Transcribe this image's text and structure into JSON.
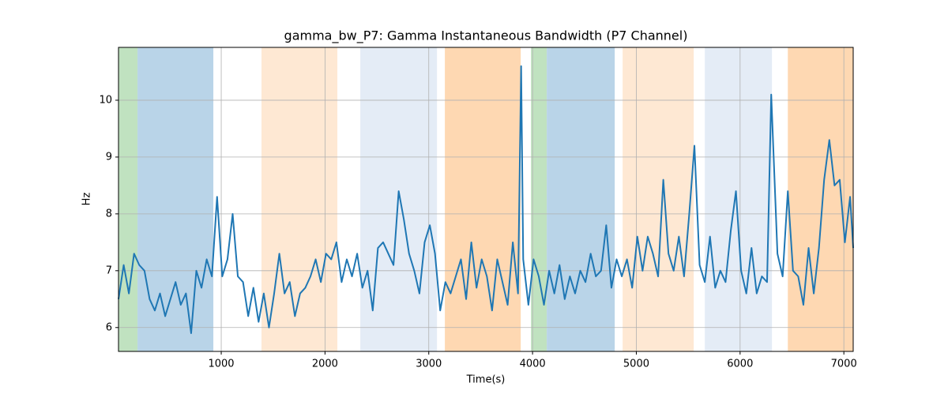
{
  "chart_data": {
    "type": "line",
    "title": "gamma_bw_P7: Gamma Instantaneous Bandwidth (P7 Channel)",
    "xlabel": "Time(s)",
    "ylabel": "Hz",
    "xlim": [
      10,
      7090
    ],
    "ylim": [
      5.58,
      10.93
    ],
    "xticks": [
      1000,
      2000,
      3000,
      4000,
      5000,
      6000,
      7000
    ],
    "yticks": [
      6,
      7,
      8,
      9,
      10
    ],
    "grid": true,
    "spans": [
      {
        "start": 10,
        "end": 193,
        "color": "#c0e2c0"
      },
      {
        "start": 193,
        "end": 924,
        "color": "#b9d4e8"
      },
      {
        "start": 1388,
        "end": 2119,
        "color": "#fee8d3"
      },
      {
        "start": 2340,
        "end": 3079,
        "color": "#e4ecf6"
      },
      {
        "start": 3155,
        "end": 3886,
        "color": "#fed8b2"
      },
      {
        "start": 3985,
        "end": 4137,
        "color": "#c0e2c0"
      },
      {
        "start": 4137,
        "end": 4792,
        "color": "#b9d4e8"
      },
      {
        "start": 4868,
        "end": 5553,
        "color": "#fee8d3"
      },
      {
        "start": 5660,
        "end": 6307,
        "color": "#e4ecf6"
      },
      {
        "start": 6460,
        "end": 7090,
        "color": "#fed8b2"
      }
    ],
    "x": [
      10,
      60,
      110,
      160,
      210,
      260,
      310,
      360,
      410,
      460,
      510,
      560,
      610,
      660,
      710,
      760,
      810,
      860,
      910,
      960,
      1010,
      1060,
      1110,
      1160,
      1210,
      1260,
      1310,
      1360,
      1410,
      1460,
      1510,
      1560,
      1610,
      1660,
      1710,
      1760,
      1810,
      1860,
      1910,
      1960,
      2010,
      2060,
      2110,
      2160,
      2210,
      2260,
      2310,
      2360,
      2410,
      2460,
      2510,
      2560,
      2610,
      2660,
      2710,
      2760,
      2810,
      2860,
      2910,
      2960,
      3010,
      3060,
      3110,
      3160,
      3210,
      3260,
      3310,
      3360,
      3410,
      3460,
      3510,
      3560,
      3610,
      3660,
      3710,
      3760,
      3810,
      3860,
      3890,
      3910,
      3960,
      4010,
      4060,
      4110,
      4160,
      4210,
      4260,
      4310,
      4360,
      4410,
      4460,
      4510,
      4560,
      4610,
      4660,
      4710,
      4760,
      4810,
      4860,
      4910,
      4960,
      5010,
      5060,
      5110,
      5160,
      5210,
      5260,
      5310,
      5360,
      5410,
      5460,
      5510,
      5560,
      5610,
      5660,
      5710,
      5760,
      5810,
      5860,
      5910,
      5960,
      6010,
      6060,
      6110,
      6160,
      6210,
      6260,
      6300,
      6360,
      6410,
      6460,
      6510,
      6560,
      6610,
      6660,
      6710,
      6760,
      6810,
      6860,
      6910,
      6960,
      7010,
      7060,
      7090
    ],
    "series": [
      {
        "name": "gamma_bw_P7",
        "color": "#1f77b4",
        "values": [
          6.5,
          7.1,
          6.6,
          7.3,
          7.1,
          7.0,
          6.5,
          6.3,
          6.6,
          6.2,
          6.5,
          6.8,
          6.4,
          6.6,
          5.9,
          7.0,
          6.7,
          7.2,
          6.9,
          8.3,
          6.9,
          7.2,
          8.0,
          6.9,
          6.8,
          6.2,
          6.7,
          6.1,
          6.6,
          6.0,
          6.6,
          7.3,
          6.6,
          6.8,
          6.2,
          6.6,
          6.7,
          6.9,
          7.2,
          6.8,
          7.3,
          7.2,
          7.5,
          6.8,
          7.2,
          6.9,
          7.3,
          6.7,
          7.0,
          6.3,
          7.4,
          7.5,
          7.3,
          7.1,
          8.4,
          7.9,
          7.3,
          7.0,
          6.6,
          7.5,
          7.8,
          7.3,
          6.3,
          6.8,
          6.6,
          6.9,
          7.2,
          6.5,
          7.5,
          6.7,
          7.2,
          6.9,
          6.3,
          7.2,
          6.8,
          6.4,
          7.5,
          6.6,
          10.6,
          7.2,
          6.4,
          7.2,
          6.9,
          6.4,
          7.0,
          6.6,
          7.1,
          6.5,
          6.9,
          6.6,
          7.0,
          6.8,
          7.3,
          6.9,
          7.0,
          7.8,
          6.7,
          7.2,
          6.9,
          7.2,
          6.7,
          7.6,
          7.0,
          7.6,
          7.3,
          6.9,
          8.6,
          7.3,
          7.0,
          7.6,
          6.9,
          8.0,
          9.2,
          7.1,
          6.8,
          7.6,
          6.7,
          7.0,
          6.8,
          7.7,
          8.4,
          7.0,
          6.6,
          7.4,
          6.6,
          6.9,
          6.8,
          10.1,
          7.3,
          6.9,
          8.4,
          7.0,
          6.9,
          6.4,
          7.4,
          6.6,
          7.4,
          8.6,
          9.3,
          8.5,
          8.6,
          7.5,
          8.3,
          7.4
        ]
      }
    ]
  }
}
